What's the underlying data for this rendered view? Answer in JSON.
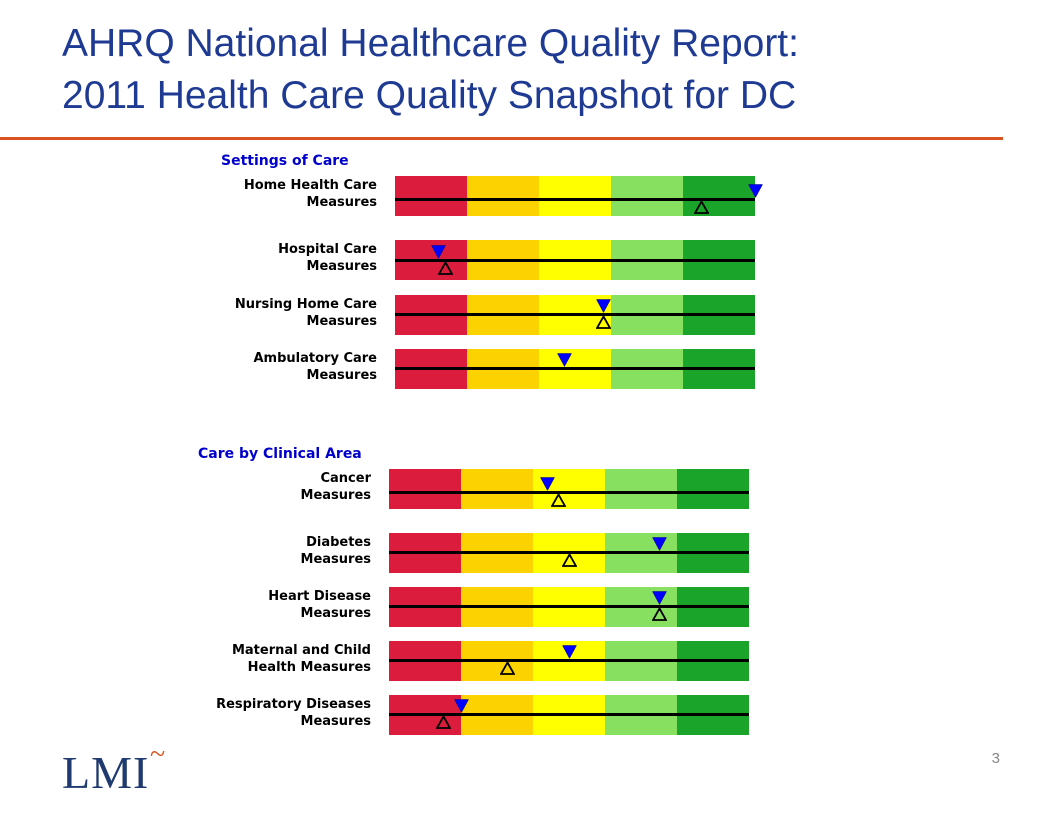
{
  "title": {
    "line1": "AHRQ National Healthcare Quality Report:",
    "line2": "2011 Health Care Quality Snapshot for DC"
  },
  "page_number": "3",
  "logo": {
    "text": "LMI",
    "accent": "~"
  },
  "colors": {
    "title": "#1f3a93",
    "rule": "#d9531e",
    "section_label": "#0000cc",
    "segments": [
      "#dc1c3c",
      "#fcd200",
      "#ffff00",
      "#88e060",
      "#1aa52a"
    ],
    "down_marker": "#0000ff",
    "up_marker": "#000000"
  },
  "chart_data": [
    {
      "type": "gauge",
      "title": "Settings of Care",
      "scale": {
        "min": 0,
        "max": 1,
        "bands": 5
      },
      "rows": [
        {
          "label_line1": "Home Health Care",
          "label_line2": "Measures",
          "down_marker": 1.0,
          "up_marker": 0.85
        },
        {
          "label_line1": "Hospital Care",
          "label_line2": "Measures",
          "down_marker": 0.12,
          "up_marker": 0.14
        },
        {
          "label_line1": "Nursing Home Care",
          "label_line2": "Measures",
          "down_marker": 0.58,
          "up_marker": 0.58
        },
        {
          "label_line1": "Ambulatory Care",
          "label_line2": "Measures",
          "down_marker": 0.47,
          "up_marker": null
        }
      ]
    },
    {
      "type": "gauge",
      "title": "Care by Clinical Area",
      "scale": {
        "min": 0,
        "max": 1,
        "bands": 5
      },
      "rows": [
        {
          "label_line1": "Cancer",
          "label_line2": "Measures",
          "down_marker": 0.44,
          "up_marker": 0.47
        },
        {
          "label_line1": "Diabetes",
          "label_line2": "Measures",
          "down_marker": 0.75,
          "up_marker": 0.5
        },
        {
          "label_line1": "Heart Disease",
          "label_line2": "Measures",
          "down_marker": 0.75,
          "up_marker": 0.75
        },
        {
          "label_line1": "Maternal and Child",
          "label_line2": "Health Measures",
          "down_marker": 0.5,
          "up_marker": 0.33
        },
        {
          "label_line1": "Respiratory Diseases",
          "label_line2": "Measures",
          "down_marker": 0.2,
          "up_marker": 0.15
        }
      ]
    }
  ]
}
